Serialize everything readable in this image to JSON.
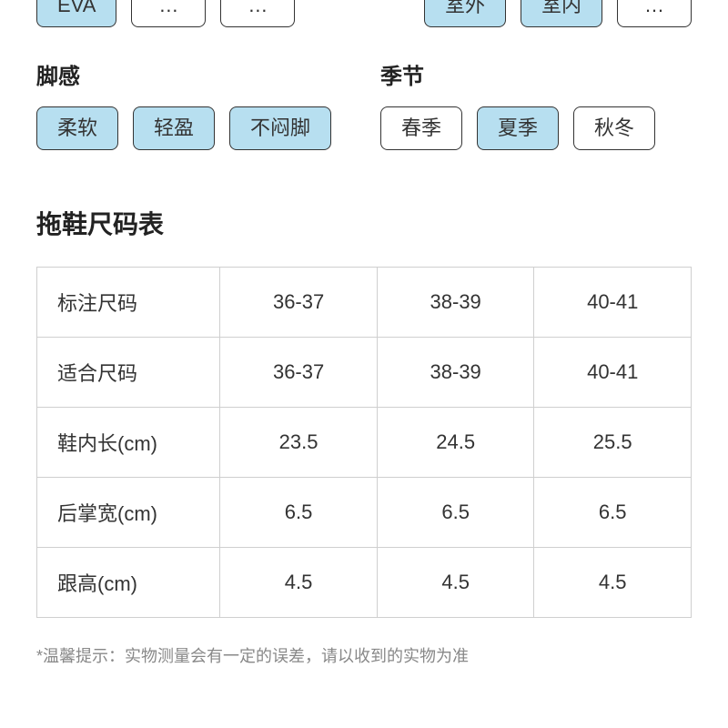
{
  "colors": {
    "chip_selected_bg": "#b7dff0",
    "chip_border": "#333333",
    "table_border": "#cfcfcf",
    "text": "#333333",
    "title": "#222222",
    "bg": "#ffffff"
  },
  "top_filters": {
    "left": [
      {
        "label": "EVA",
        "selected": true
      },
      {
        "label": "…",
        "selected": false
      },
      {
        "label": "…",
        "selected": false
      }
    ],
    "right": [
      {
        "label": "室外",
        "selected": true
      },
      {
        "label": "室内",
        "selected": true
      },
      {
        "label": "…",
        "selected": false
      }
    ]
  },
  "groups": [
    {
      "title": "脚感",
      "chips": [
        {
          "label": "柔软",
          "selected": true
        },
        {
          "label": "轻盈",
          "selected": true
        },
        {
          "label": "不闷脚",
          "selected": true
        }
      ]
    },
    {
      "title": "季节",
      "chips": [
        {
          "label": "春季",
          "selected": false
        },
        {
          "label": "夏季",
          "selected": true
        },
        {
          "label": "秋冬",
          "selected": false
        }
      ]
    }
  ],
  "size_section": {
    "title": "拖鞋尺码表",
    "columns": [
      "36-37",
      "38-39",
      "40-41"
    ],
    "rows": [
      {
        "header": "标注尺码",
        "cells": [
          "36-37",
          "38-39",
          "40-41"
        ]
      },
      {
        "header": "适合尺码",
        "cells": [
          "36-37",
          "38-39",
          "40-41"
        ]
      },
      {
        "header": "鞋内长(cm)",
        "cells": [
          "23.5",
          "24.5",
          "25.5"
        ]
      },
      {
        "header": "后掌宽(cm)",
        "cells": [
          "6.5",
          "6.5",
          "6.5"
        ]
      },
      {
        "header": "跟高(cm)",
        "cells": [
          "4.5",
          "4.5",
          "4.5"
        ]
      }
    ]
  },
  "footnote": "*温馨提示：实物测量会有一定的误差，请以收到的实物为准"
}
